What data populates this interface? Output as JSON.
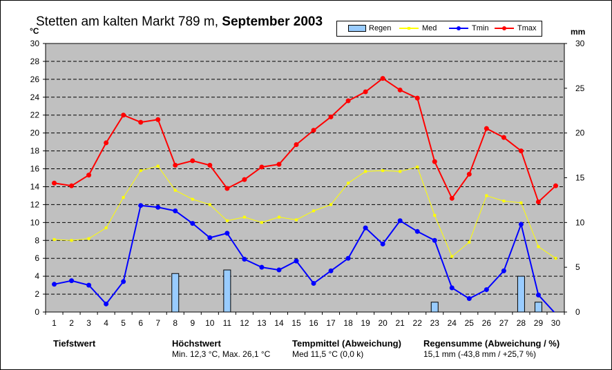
{
  "title": {
    "station": "Stetten am kalten Markt 789 m,",
    "period": "September 2003"
  },
  "units": {
    "left": "°C",
    "right": "mm"
  },
  "legend": [
    {
      "key": "rain",
      "label": "Regen"
    },
    {
      "key": "med",
      "label": "Med"
    },
    {
      "key": "tmin",
      "label": "Tmin"
    },
    {
      "key": "tmax",
      "label": "Tmax"
    }
  ],
  "colors": {
    "plot_bg": "#c0c0c0",
    "rain_fill": "#99ccff",
    "med": "#ffff00",
    "tmin": "#0000ff",
    "tmax": "#ff0000"
  },
  "stats": {
    "tiefstwert": {
      "label": "Tiefstwert",
      "value": ""
    },
    "hoechstwert": {
      "label": "Höchstwert",
      "value": "Min. 12,3 °C, Max. 26,1 °C"
    },
    "tempmittel": {
      "label": "Tempmittel (Abweichung)",
      "value": "Med 11,5 °C (0,0 k)"
    },
    "regensumme": {
      "label": "Regensumme (Abweichung / %)",
      "value": "15,1 mm (-43,8 mm / +25,7 %)"
    }
  },
  "chart_data": {
    "type": "line",
    "x": [
      1,
      2,
      3,
      4,
      5,
      6,
      7,
      8,
      9,
      10,
      11,
      12,
      13,
      14,
      15,
      16,
      17,
      18,
      19,
      20,
      21,
      22,
      23,
      24,
      25,
      26,
      27,
      28,
      29,
      30
    ],
    "xlim": [
      0.5,
      30.5
    ],
    "ylim": [
      0,
      30
    ],
    "y2lim": [
      0,
      30
    ],
    "yticks": [
      0,
      2,
      4,
      6,
      8,
      10,
      12,
      14,
      16,
      18,
      20,
      22,
      24,
      26,
      28,
      30
    ],
    "y2ticks": [
      0,
      5,
      10,
      15,
      20,
      25,
      30
    ],
    "grid": true,
    "legend_position": "top-right",
    "series": [
      {
        "name": "Regen",
        "type": "bar",
        "axis": "right",
        "values": [
          0,
          0,
          0,
          0,
          0,
          0,
          0,
          4.3,
          0,
          0,
          4.7,
          0,
          0,
          0,
          0,
          0,
          0,
          0,
          0,
          0,
          0,
          0,
          1.1,
          0,
          0,
          0,
          0,
          4.0,
          1.1,
          0
        ]
      },
      {
        "name": "Med",
        "type": "line",
        "axis": "left",
        "values": [
          8.1,
          8.0,
          8.2,
          9.4,
          12.8,
          15.8,
          16.3,
          13.6,
          12.6,
          12.0,
          10.2,
          10.6,
          10.0,
          10.6,
          10.3,
          11.3,
          12.0,
          14.4,
          15.7,
          15.8,
          15.7,
          16.2,
          10.8,
          6.2,
          7.8,
          13.0,
          12.4,
          12.2,
          7.3,
          6.0
        ]
      },
      {
        "name": "Tmin",
        "type": "line",
        "axis": "left",
        "values": [
          3.1,
          3.5,
          3.0,
          0.9,
          3.4,
          11.9,
          11.7,
          11.3,
          9.9,
          8.3,
          8.8,
          5.9,
          5.0,
          4.7,
          5.7,
          3.2,
          4.6,
          6.0,
          9.4,
          7.6,
          10.2,
          9.0,
          8.0,
          2.7,
          1.5,
          2.5,
          4.6,
          9.8,
          1.9,
          -0.2
        ]
      },
      {
        "name": "Tmax",
        "type": "line",
        "axis": "left",
        "values": [
          14.4,
          14.1,
          15.3,
          18.9,
          22.0,
          21.2,
          21.5,
          16.4,
          16.9,
          16.4,
          13.8,
          14.8,
          16.2,
          16.5,
          18.7,
          20.3,
          21.8,
          23.6,
          24.6,
          26.1,
          24.8,
          23.9,
          16.8,
          12.7,
          15.4,
          20.5,
          19.5,
          18.0,
          12.3,
          14.1
        ]
      }
    ]
  }
}
